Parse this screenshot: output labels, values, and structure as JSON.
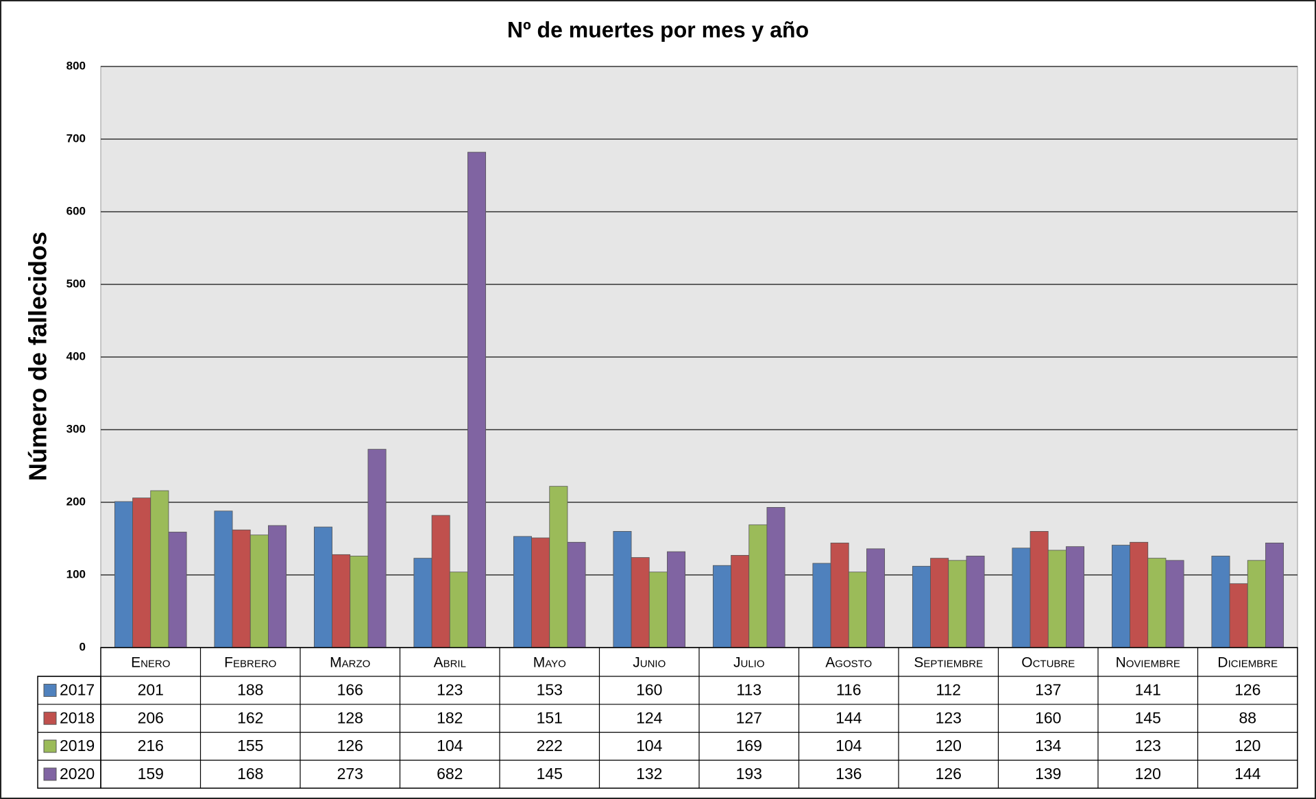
{
  "chart_data": {
    "type": "bar",
    "title": "Nº de muertes por mes y año",
    "y_label": "Número de fallecidos",
    "categories": [
      "Enero",
      "Febrero",
      "Marzo",
      "Abril",
      "Mayo",
      "Junio",
      "Julio",
      "Agosto",
      "Septiembre",
      "Octubre",
      "Noviembre",
      "Diciembre"
    ],
    "series": [
      {
        "name": "2017",
        "color": "#4f81bd",
        "values": [
          201,
          188,
          166,
          123,
          153,
          160,
          113,
          116,
          112,
          137,
          141,
          126
        ]
      },
      {
        "name": "2018",
        "color": "#c0504d",
        "values": [
          206,
          162,
          128,
          182,
          151,
          124,
          127,
          144,
          123,
          160,
          145,
          88
        ]
      },
      {
        "name": "2019",
        "color": "#9bbb59",
        "values": [
          216,
          155,
          126,
          104,
          222,
          104,
          169,
          104,
          120,
          134,
          123,
          120
        ]
      },
      {
        "name": "2020",
        "color": "#8064a2",
        "values": [
          159,
          168,
          273,
          682,
          145,
          132,
          193,
          136,
          126,
          139,
          120,
          144
        ]
      }
    ],
    "ylim": [
      0,
      800
    ],
    "yticks": [
      0,
      100,
      200,
      300,
      400,
      500,
      600,
      700,
      800
    ],
    "grid": true
  }
}
